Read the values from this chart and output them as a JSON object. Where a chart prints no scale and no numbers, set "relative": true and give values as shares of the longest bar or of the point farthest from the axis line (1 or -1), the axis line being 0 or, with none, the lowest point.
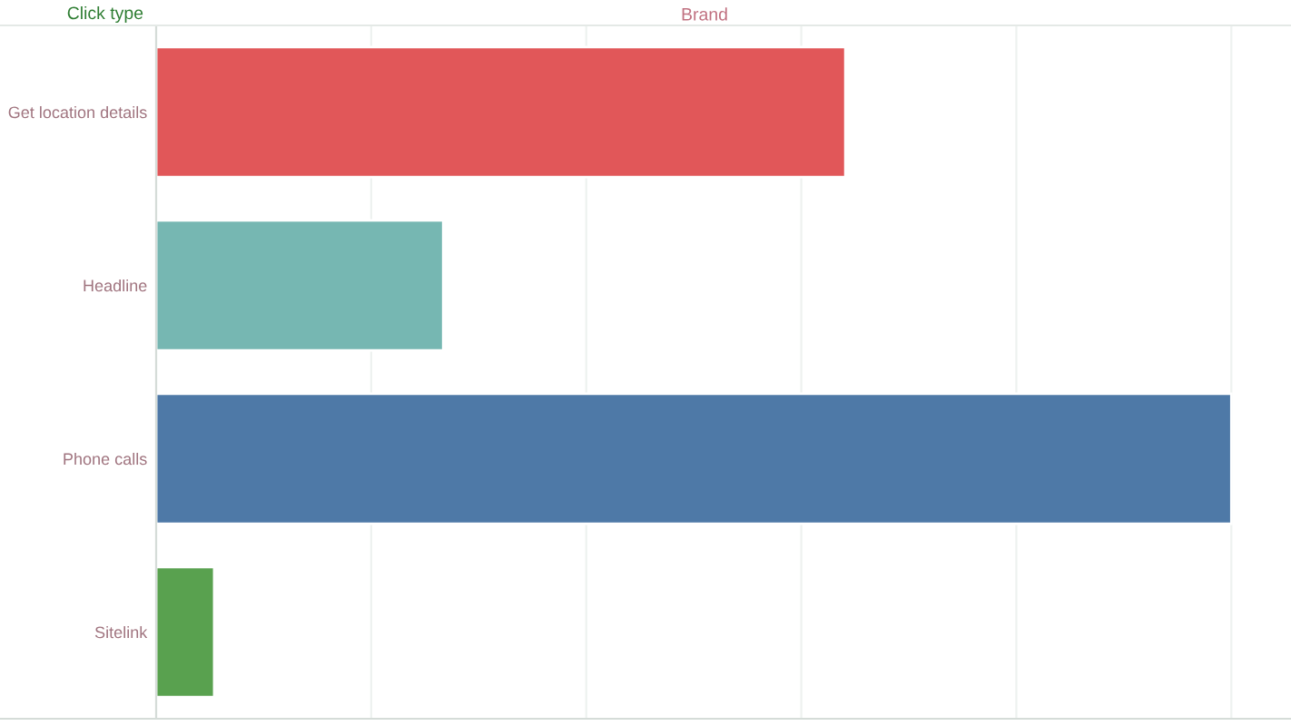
{
  "chart_data": {
    "type": "bar",
    "orientation": "horizontal",
    "relative": true,
    "xlabel": "Brand",
    "ylabel": "Click type",
    "categories": [
      "Get location details",
      "Headline",
      "Phone calls",
      "Sitelink"
    ],
    "values": [
      0.641,
      0.267,
      1,
      0.054
    ],
    "colors": [
      "#e15759",
      "#76b7b2",
      "#4e79a7",
      "#59a14f"
    ],
    "grid": "x"
  }
}
